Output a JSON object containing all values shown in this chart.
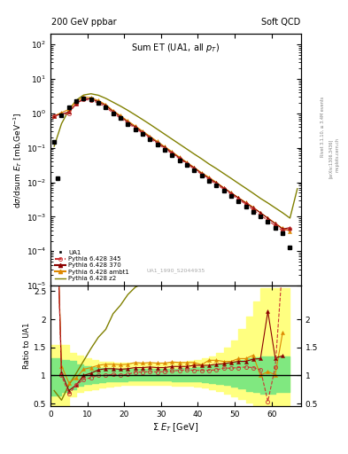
{
  "title_left": "200 GeV ppbar",
  "title_right": "Soft QCD",
  "plot_title": "Sum ET (UA1, all p_{T})",
  "ylabel_main": "dσ/dsum E_{T} [mb,GeV⁻¹]",
  "ylabel_ratio": "Ratio to UA1",
  "xlabel": "Σ E_{T} [GeV]",
  "watermark": "UA1_1990_S2044935",
  "rivet_label": "Rivet 3.1.10, ≥ 3.4M events",
  "arxiv_label": "[arXiv:1306.3436]",
  "mcplots_label": "mcplots.cern.ch",
  "ua1_x": [
    1,
    2,
    3,
    5,
    7,
    9,
    11,
    13,
    15,
    17,
    19,
    21,
    23,
    25,
    27,
    29,
    31,
    33,
    35,
    37,
    39,
    41,
    43,
    45,
    47,
    49,
    51,
    53,
    55,
    57,
    59,
    61,
    63,
    65
  ],
  "ua1_y": [
    0.15,
    0.013,
    0.9,
    1.5,
    2.3,
    2.7,
    2.5,
    2.0,
    1.5,
    1.0,
    0.72,
    0.5,
    0.35,
    0.25,
    0.175,
    0.125,
    0.088,
    0.062,
    0.044,
    0.031,
    0.022,
    0.016,
    0.011,
    0.0079,
    0.0056,
    0.004,
    0.0028,
    0.002,
    0.0014,
    0.001,
    0.0007,
    0.00048,
    0.00033,
    0.00013
  ],
  "py345_x": [
    1,
    3,
    5,
    7,
    9,
    11,
    13,
    15,
    17,
    19,
    21,
    23,
    25,
    27,
    29,
    31,
    33,
    35,
    37,
    39,
    41,
    43,
    45,
    47,
    49,
    51,
    53,
    55,
    57,
    59,
    61,
    63,
    65
  ],
  "py345_y": [
    0.85,
    0.9,
    1.0,
    1.9,
    2.5,
    2.4,
    2.0,
    1.5,
    1.02,
    0.72,
    0.51,
    0.37,
    0.265,
    0.188,
    0.133,
    0.094,
    0.067,
    0.048,
    0.034,
    0.024,
    0.017,
    0.012,
    0.0087,
    0.0063,
    0.0045,
    0.0032,
    0.0023,
    0.0016,
    0.0011,
    0.00078,
    0.00055,
    0.00039,
    0.00045
  ],
  "py370_x": [
    1,
    3,
    5,
    7,
    9,
    11,
    13,
    15,
    17,
    19,
    21,
    23,
    25,
    27,
    29,
    31,
    33,
    35,
    37,
    39,
    41,
    43,
    45,
    47,
    49,
    51,
    53,
    55,
    57,
    59,
    61,
    63,
    65
  ],
  "py370_y": [
    0.85,
    0.95,
    1.1,
    1.9,
    2.7,
    2.6,
    2.2,
    1.68,
    1.12,
    0.8,
    0.56,
    0.4,
    0.285,
    0.202,
    0.143,
    0.101,
    0.072,
    0.051,
    0.036,
    0.026,
    0.018,
    0.013,
    0.0095,
    0.0068,
    0.0049,
    0.0035,
    0.0025,
    0.0018,
    0.0013,
    0.0009,
    0.00063,
    0.00044,
    0.00048
  ],
  "pyambt_x": [
    1,
    3,
    5,
    7,
    9,
    11,
    13,
    15,
    17,
    19,
    21,
    23,
    25,
    27,
    29,
    31,
    33,
    35,
    37,
    39,
    41,
    43,
    45,
    47,
    49,
    51,
    53,
    55,
    57,
    59,
    61,
    63,
    65
  ],
  "pyambt_y": [
    0.85,
    1.05,
    1.3,
    2.2,
    3.0,
    2.85,
    2.35,
    1.8,
    1.2,
    0.855,
    0.6,
    0.43,
    0.305,
    0.216,
    0.153,
    0.108,
    0.077,
    0.054,
    0.038,
    0.027,
    0.019,
    0.014,
    0.01,
    0.007,
    0.005,
    0.0036,
    0.0026,
    0.0019,
    0.0013,
    0.00092,
    0.00065,
    0.00046,
    0.00038
  ],
  "pyz2_x": [
    1,
    3,
    5,
    7,
    9,
    11,
    13,
    15,
    17,
    19,
    21,
    23,
    25,
    27,
    29,
    31,
    33,
    35,
    37,
    39,
    41,
    43,
    45,
    47,
    49,
    51,
    53,
    55,
    57,
    59,
    61,
    63,
    65,
    67
  ],
  "pyz2_y": [
    0.11,
    0.5,
    1.25,
    2.4,
    3.4,
    3.7,
    3.35,
    2.72,
    2.1,
    1.62,
    1.22,
    0.9,
    0.66,
    0.48,
    0.345,
    0.248,
    0.178,
    0.128,
    0.092,
    0.066,
    0.048,
    0.034,
    0.025,
    0.018,
    0.013,
    0.0093,
    0.0067,
    0.0048,
    0.0034,
    0.0025,
    0.0018,
    0.0013,
    0.00091,
    0.0065
  ],
  "ratio_py345_x": [
    1,
    3,
    5,
    7,
    9,
    11,
    13,
    15,
    17,
    19,
    21,
    23,
    25,
    27,
    29,
    31,
    33,
    35,
    37,
    39,
    41,
    43,
    45,
    47,
    49,
    51,
    53,
    55,
    57,
    59,
    61,
    63
  ],
  "ratio_py345_y": [
    5.5,
    1.0,
    0.67,
    0.83,
    0.93,
    0.96,
    1.0,
    1.0,
    1.02,
    1.0,
    1.02,
    1.06,
    1.06,
    1.07,
    1.06,
    1.07,
    1.08,
    1.09,
    1.1,
    1.09,
    1.09,
    1.09,
    1.1,
    1.13,
    1.13,
    1.14,
    1.15,
    1.14,
    1.1,
    0.54,
    1.15,
    3.0
  ],
  "ratio_py370_x": [
    1,
    3,
    5,
    7,
    9,
    11,
    13,
    15,
    17,
    19,
    21,
    23,
    25,
    27,
    29,
    31,
    33,
    35,
    37,
    39,
    41,
    43,
    45,
    47,
    49,
    51,
    53,
    55,
    57,
    59,
    61,
    63
  ],
  "ratio_py370_y": [
    5.5,
    1.05,
    0.73,
    0.83,
    1.0,
    1.04,
    1.1,
    1.12,
    1.12,
    1.11,
    1.12,
    1.14,
    1.14,
    1.15,
    1.14,
    1.14,
    1.16,
    1.16,
    1.16,
    1.18,
    1.18,
    1.18,
    1.2,
    1.21,
    1.23,
    1.25,
    1.25,
    1.29,
    1.3,
    2.14,
    1.31,
    1.35
  ],
  "ratio_pyambt_x": [
    1,
    3,
    5,
    7,
    9,
    11,
    13,
    15,
    17,
    19,
    21,
    23,
    25,
    27,
    29,
    31,
    33,
    35,
    37,
    39,
    41,
    43,
    45,
    47,
    49,
    51,
    53,
    55,
    57,
    59,
    61,
    63
  ],
  "ratio_pyambt_y": [
    5.5,
    1.17,
    0.87,
    0.96,
    1.11,
    1.14,
    1.18,
    1.2,
    1.2,
    1.19,
    1.2,
    1.23,
    1.22,
    1.23,
    1.22,
    1.22,
    1.24,
    1.23,
    1.23,
    1.23,
    1.19,
    1.27,
    1.27,
    1.25,
    1.25,
    1.3,
    1.3,
    1.36,
    1.0,
    1.07,
    1.01,
    1.76
  ],
  "ratio_pyz2_x": [
    1,
    3,
    5,
    7,
    9,
    11,
    13,
    15,
    17,
    19,
    21,
    23,
    25,
    27,
    29,
    31,
    33,
    35,
    37,
    39,
    41,
    43,
    45,
    47,
    49,
    51,
    53,
    55,
    57,
    59,
    61,
    63
  ],
  "ratio_pyz2_y": [
    0.73,
    0.56,
    0.83,
    1.04,
    1.26,
    1.48,
    1.68,
    1.82,
    2.1,
    2.25,
    2.44,
    2.57,
    2.64,
    2.74,
    2.76,
    2.81,
    2.87,
    2.91,
    2.97,
    3.0,
    3.09,
    3.09,
    3.16,
    3.21,
    3.25,
    3.32,
    3.35,
    3.43,
    3.4,
    3.57,
    3.6,
    5.0
  ],
  "band_yellow_x": [
    0,
    3,
    5,
    7,
    9,
    11,
    13,
    15,
    17,
    19,
    21,
    23,
    25,
    27,
    29,
    31,
    33,
    35,
    37,
    39,
    41,
    43,
    45,
    47,
    49,
    51,
    53,
    55,
    57,
    59,
    61,
    63,
    65
  ],
  "band_yellow_lo": [
    0.45,
    0.45,
    0.62,
    0.7,
    0.74,
    0.76,
    0.78,
    0.8,
    0.82,
    0.83,
    0.84,
    0.84,
    0.84,
    0.84,
    0.83,
    0.83,
    0.82,
    0.82,
    0.81,
    0.8,
    0.78,
    0.75,
    0.72,
    0.68,
    0.63,
    0.58,
    0.52,
    0.45,
    0.38,
    0.3,
    0.38,
    0.38,
    0.38
  ],
  "band_yellow_hi": [
    1.55,
    1.55,
    1.4,
    1.35,
    1.3,
    1.27,
    1.25,
    1.24,
    1.23,
    1.22,
    1.22,
    1.22,
    1.22,
    1.22,
    1.23,
    1.23,
    1.24,
    1.25,
    1.26,
    1.28,
    1.3,
    1.34,
    1.4,
    1.5,
    1.63,
    1.82,
    2.05,
    2.32,
    2.55,
    2.55,
    2.55,
    2.55,
    2.55
  ],
  "band_green_x": [
    0,
    3,
    5,
    7,
    9,
    11,
    13,
    15,
    17,
    19,
    21,
    23,
    25,
    27,
    29,
    31,
    33,
    35,
    37,
    39,
    41,
    43,
    45,
    47,
    49,
    51,
    53,
    55,
    57,
    59,
    61,
    63,
    65
  ],
  "band_green_lo": [
    0.65,
    0.7,
    0.76,
    0.82,
    0.85,
    0.87,
    0.88,
    0.89,
    0.9,
    0.9,
    0.91,
    0.91,
    0.91,
    0.91,
    0.91,
    0.91,
    0.9,
    0.9,
    0.9,
    0.89,
    0.88,
    0.87,
    0.85,
    0.83,
    0.8,
    0.77,
    0.73,
    0.7,
    0.68,
    0.68,
    0.7,
    0.7,
    0.7
  ],
  "band_green_hi": [
    1.3,
    1.28,
    1.26,
    1.2,
    1.17,
    1.15,
    1.14,
    1.13,
    1.12,
    1.12,
    1.11,
    1.11,
    1.11,
    1.11,
    1.12,
    1.12,
    1.12,
    1.13,
    1.14,
    1.15,
    1.16,
    1.18,
    1.2,
    1.22,
    1.25,
    1.28,
    1.3,
    1.32,
    1.34,
    1.34,
    1.34,
    1.34,
    1.34
  ],
  "color_py345": "#cc3333",
  "color_py370": "#8b0000",
  "color_pyambt": "#dd8800",
  "color_pyz2": "#808000",
  "color_ua1": "#000000",
  "color_green_band": "#80e880",
  "color_yellow_band": "#ffff80"
}
